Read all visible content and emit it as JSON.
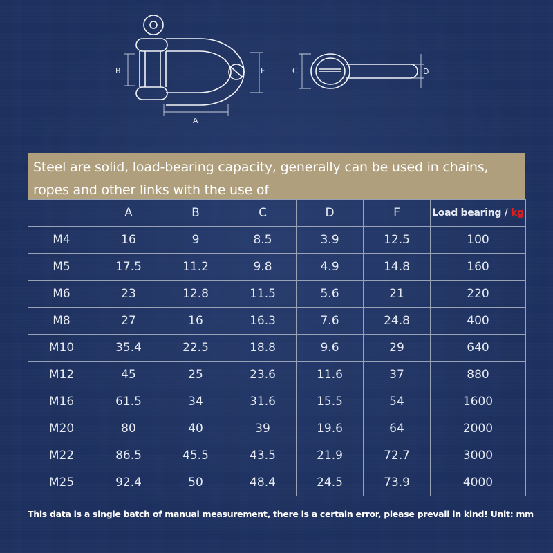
{
  "diagram": {
    "labels": {
      "a": "A",
      "b": "B",
      "c": "C",
      "d": "D",
      "f": "F"
    }
  },
  "banner": {
    "line1": "Steel are solid, load-bearing capacity, generally can be used in chains,",
    "line2": "ropes and other links with the use of"
  },
  "table": {
    "columns": [
      "",
      "A",
      "B",
      "C",
      "D",
      "F"
    ],
    "load_header": "Load bearing /",
    "load_unit": "kg",
    "rows": [
      [
        "M4",
        "16",
        "9",
        "8.5",
        "3.9",
        "12.5",
        "100"
      ],
      [
        "M5",
        "17.5",
        "11.2",
        "9.8",
        "4.9",
        "14.8",
        "160"
      ],
      [
        "M6",
        "23",
        "12.8",
        "11.5",
        "5.6",
        "21",
        "220"
      ],
      [
        "M8",
        "27",
        "16",
        "16.3",
        "7.6",
        "24.8",
        "400"
      ],
      [
        "M10",
        "35.4",
        "22.5",
        "18.8",
        "9.6",
        "29",
        "640"
      ],
      [
        "M12",
        "45",
        "25",
        "23.6",
        "11.6",
        "37",
        "880"
      ],
      [
        "M16",
        "61.5",
        "34",
        "31.6",
        "15.5",
        "54",
        "1600"
      ],
      [
        "M20",
        "80",
        "40",
        "39",
        "19.6",
        "64",
        "2000"
      ],
      [
        "M22",
        "86.5",
        "45.5",
        "43.5",
        "21.9",
        "72.7",
        "3000"
      ],
      [
        "M25",
        "92.4",
        "50",
        "48.4",
        "24.5",
        "73.9",
        "4000"
      ]
    ]
  },
  "footnote": "This data is a single batch of manual measurement, there is a certain error, please prevail in kind! Unit: mm",
  "colors": {
    "background": "#1e3160",
    "banner": "#b09f7d",
    "grid": "#9aa3b6",
    "unit_red": "#e02020"
  }
}
